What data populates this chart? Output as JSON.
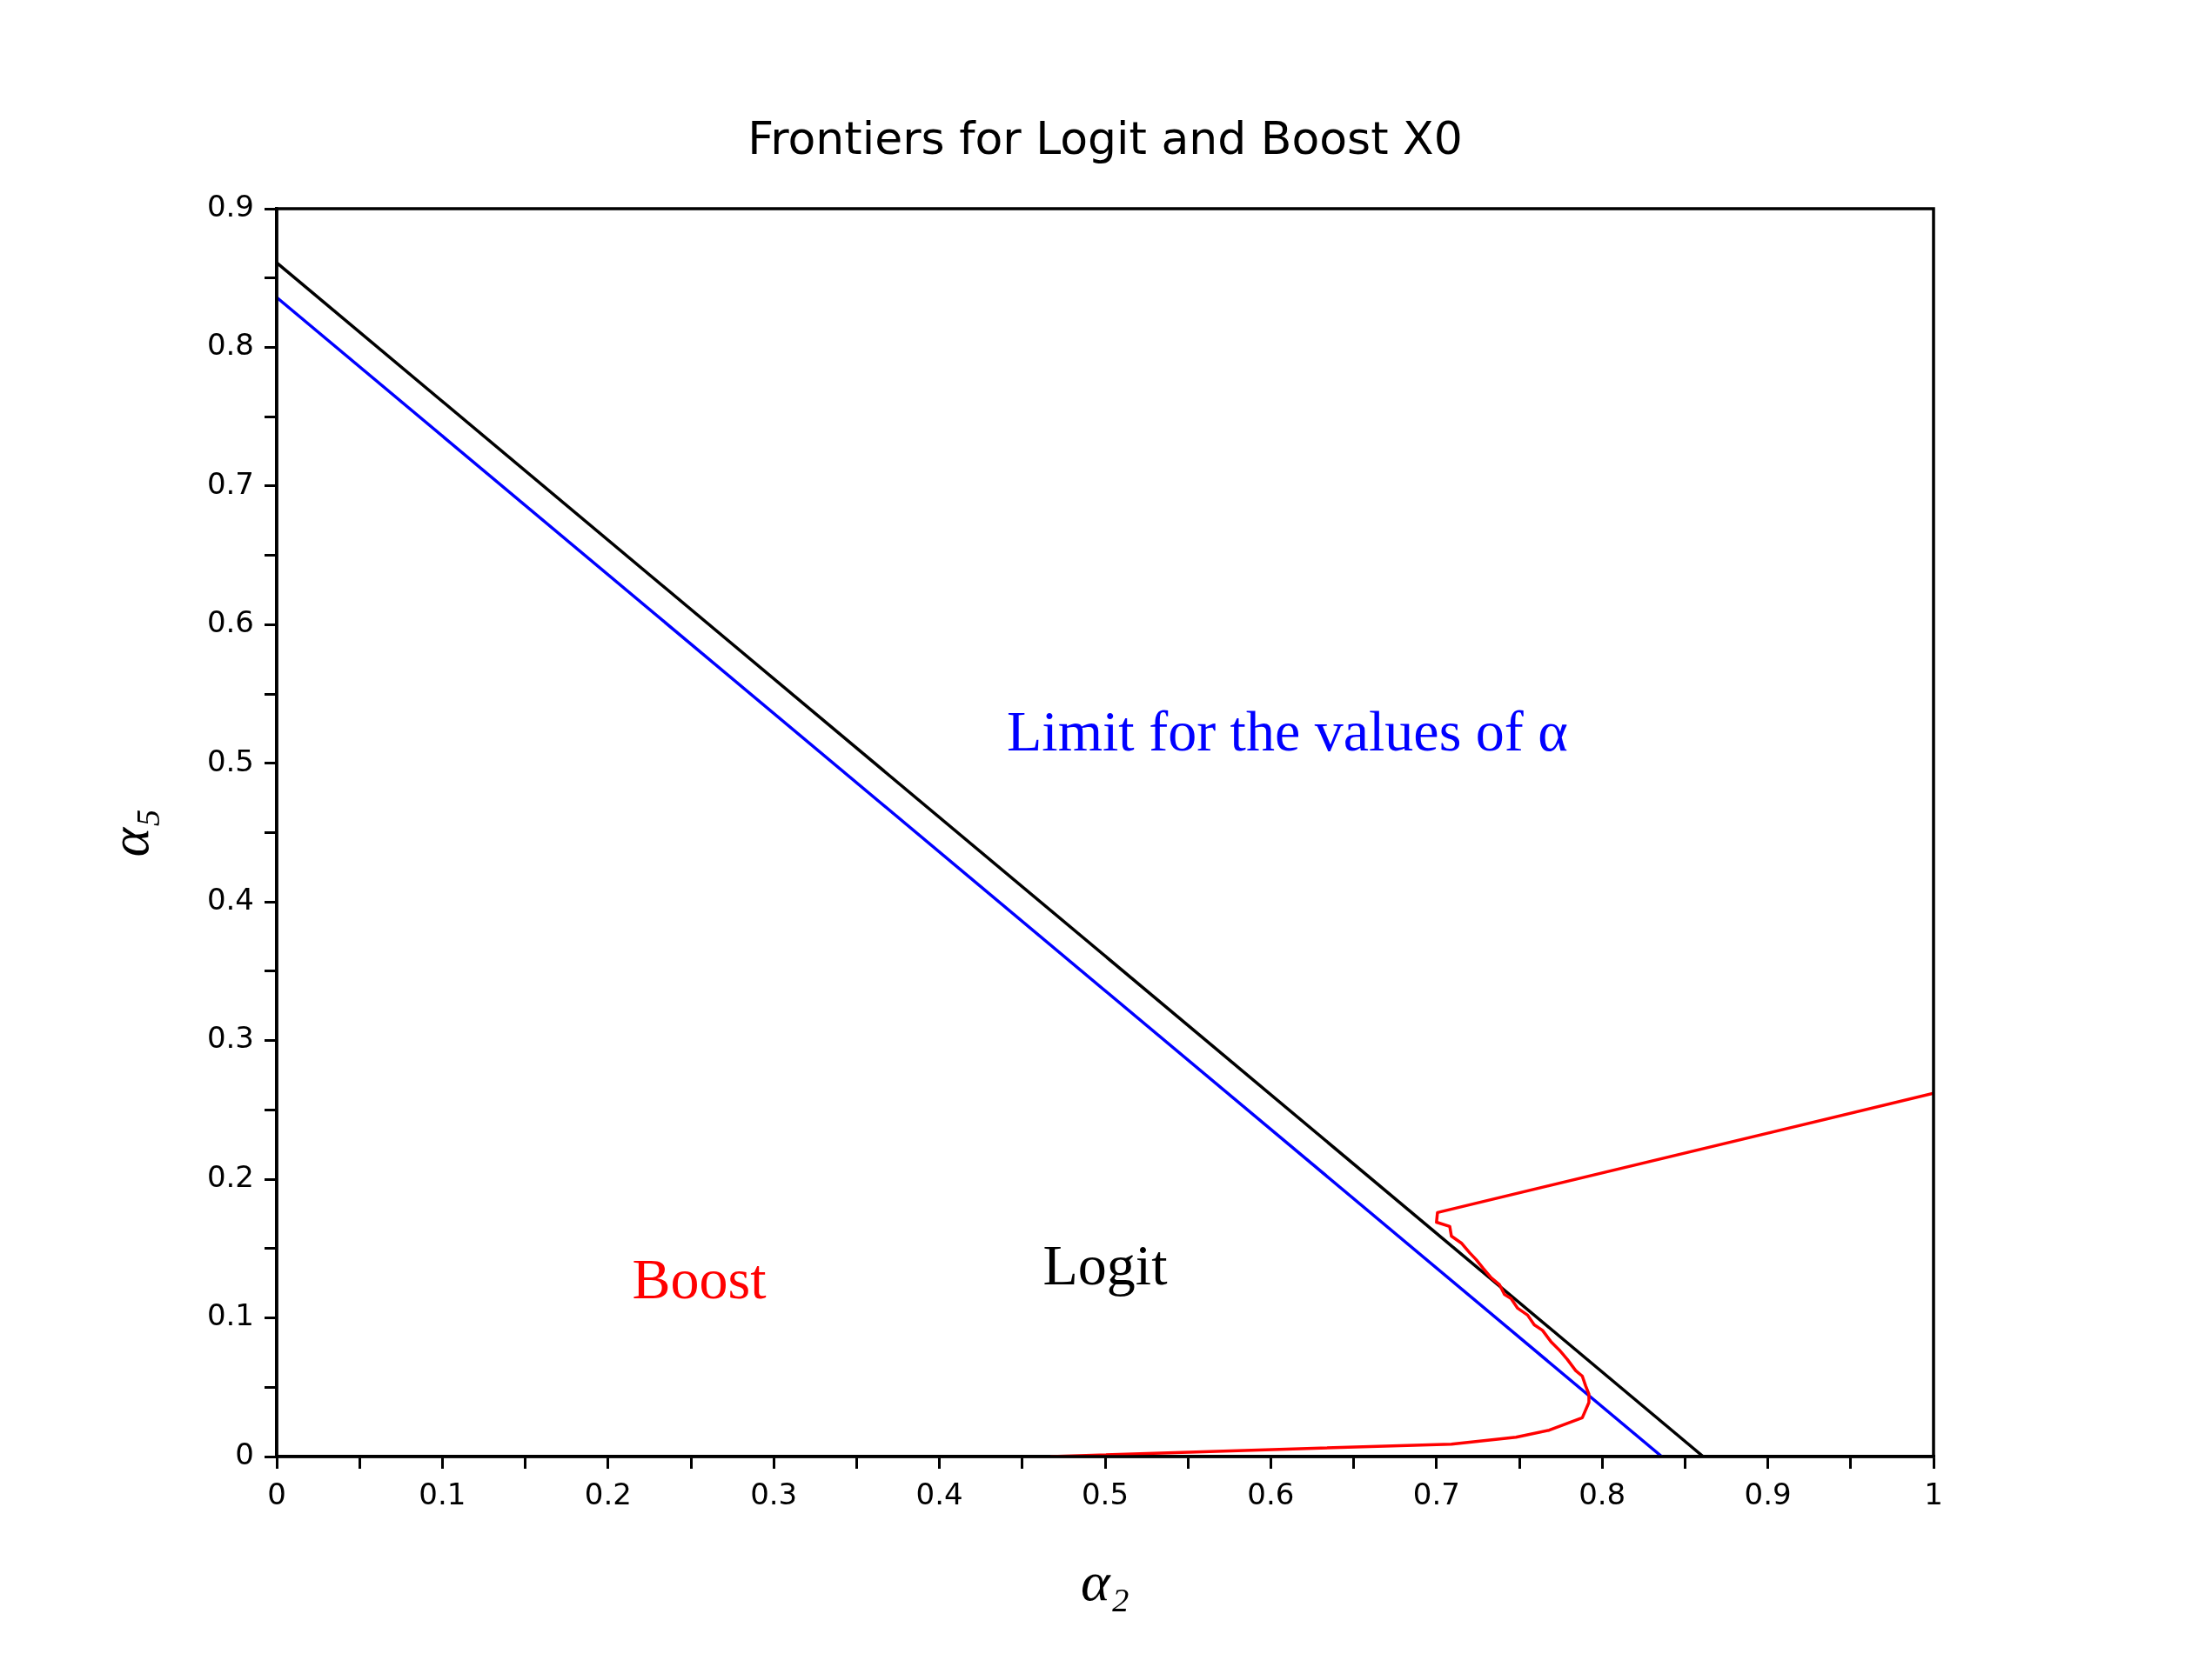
{
  "chart_data": {
    "type": "line",
    "title": "Frontiers for Logit and Boost X0",
    "xlabel": "α₂",
    "ylabel": "α₅",
    "xlim": [
      0,
      1
    ],
    "ylim": [
      0,
      0.9
    ],
    "xticks": [
      0,
      {
        "value": 0.05,
        "label": null
      },
      0.1,
      {
        "value": 0.15,
        "label": null
      },
      0.2,
      {
        "value": 0.25,
        "label": null
      },
      0.3,
      {
        "value": 0.35,
        "label": null
      },
      0.4,
      {
        "value": 0.45,
        "label": null
      },
      0.5,
      {
        "value": 0.55,
        "label": null
      },
      0.6,
      {
        "value": 0.65,
        "label": null
      },
      0.7,
      {
        "value": 0.75,
        "label": null
      },
      0.8,
      {
        "value": 0.85,
        "label": null
      },
      0.9,
      {
        "value": 0.95,
        "label": null
      },
      1
    ],
    "yticks": [
      0,
      {
        "value": 0.05,
        "label": null
      },
      0.1,
      {
        "value": 0.15,
        "label": null
      },
      0.2,
      {
        "value": 0.25,
        "label": null
      },
      0.3,
      {
        "value": 0.35,
        "label": null
      },
      0.4,
      {
        "value": 0.45,
        "label": null
      },
      0.5,
      {
        "value": 0.55,
        "label": null
      },
      0.6,
      {
        "value": 0.65,
        "label": null
      },
      0.7,
      {
        "value": 0.75,
        "label": null
      },
      0.8,
      {
        "value": 0.85,
        "label": null
      },
      0.9
    ],
    "grid": false,
    "legend": false,
    "marker": "none",
    "line_style": "solid",
    "series": [
      {
        "name": "Boost",
        "color": "#ff0000",
        "x": [
          0.467,
          0.601,
          0.709,
          0.748,
          0.768,
          0.788,
          0.792,
          0.792,
          0.79,
          0.788,
          0.784,
          0.779,
          0.774,
          0.769,
          0.764,
          0.759,
          0.755,
          0.749,
          0.745,
          0.741,
          0.738,
          0.733,
          0.728,
          0.724,
          0.72,
          0.715,
          0.709,
          0.708,
          0.7,
          0.7006,
          1
        ],
        "values": [
          0,
          0.005,
          0.009,
          0.014,
          0.019,
          0.028,
          0.039,
          0.045,
          0.051,
          0.058,
          0.062,
          0.07,
          0.077,
          0.083,
          0.091,
          0.095,
          0.102,
          0.107,
          0.114,
          0.117,
          0.124,
          0.129,
          0.136,
          0.142,
          0.147,
          0.154,
          0.159,
          0.166,
          0.169,
          0.176,
          0.262
        ]
      },
      {
        "name": "Logit",
        "color": "#000000",
        "x": [
          0,
          0.861
        ],
        "values": [
          0.861,
          0
        ]
      },
      {
        "name": "Limit for the values of α",
        "color": "#0000ff",
        "x": [
          0,
          0.836
        ],
        "values": [
          0.836,
          0
        ]
      }
    ]
  }
}
